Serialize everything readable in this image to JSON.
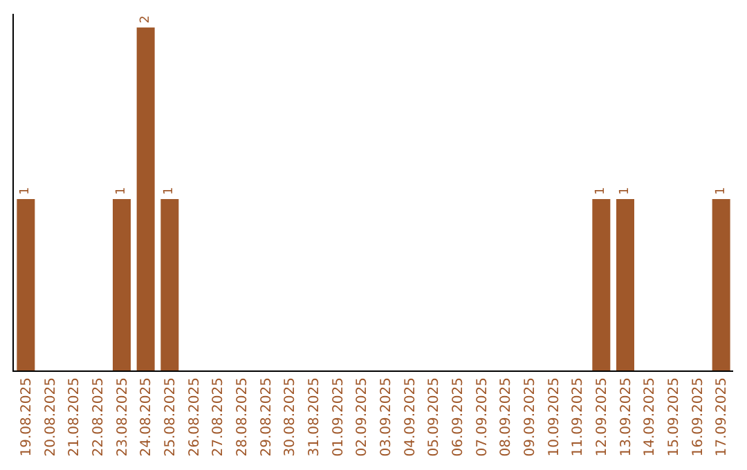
{
  "chart_data": {
    "type": "bar",
    "categories": [
      "19.08.2025",
      "20.08.2025",
      "21.08.2025",
      "22.08.2025",
      "23.08.2025",
      "24.08.2025",
      "25.08.2025",
      "26.08.2025",
      "27.08.2025",
      "28.08.2025",
      "29.08.2025",
      "30.08.2025",
      "31.08.2025",
      "01.09.2025",
      "02.09.2025",
      "03.09.2025",
      "04.09.2025",
      "05.09.2025",
      "06.09.2025",
      "07.09.2025",
      "08.09.2025",
      "09.09.2025",
      "10.09.2025",
      "11.09.2025",
      "12.09.2025",
      "13.09.2025",
      "14.09.2025",
      "15.09.2025",
      "16.09.2025",
      "17.09.2025"
    ],
    "values": [
      1,
      0,
      0,
      0,
      1,
      2,
      1,
      0,
      0,
      0,
      0,
      0,
      0,
      0,
      0,
      0,
      0,
      0,
      0,
      0,
      0,
      0,
      0,
      0,
      1,
      1,
      0,
      0,
      0,
      1
    ],
    "value_labels": [
      "1",
      null,
      null,
      null,
      "1",
      "2",
      "1",
      null,
      null,
      null,
      null,
      null,
      null,
      null,
      null,
      null,
      null,
      null,
      null,
      null,
      null,
      null,
      null,
      null,
      "1",
      "1",
      null,
      null,
      null,
      "1"
    ],
    "color": "#a0582a",
    "ylim": [
      0,
      2.08
    ],
    "tick_labels": "x"
  }
}
